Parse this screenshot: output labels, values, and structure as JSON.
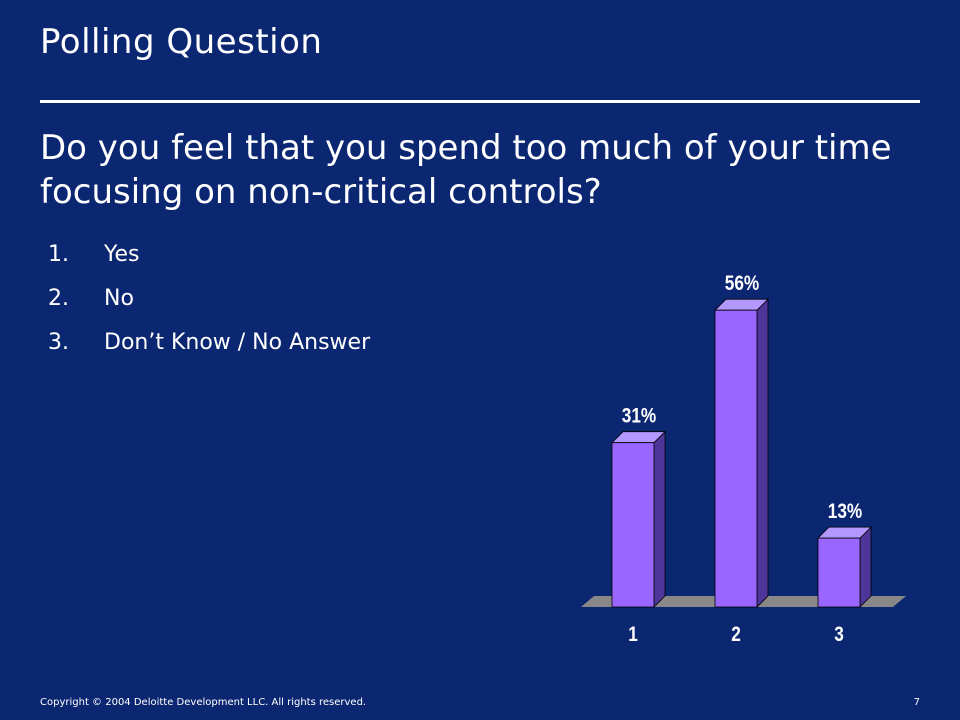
{
  "slide": {
    "title": "Polling Question",
    "question": "Do you feel that you spend too much of your time focusing on non-critical controls?",
    "answers": [
      {
        "number": "1.",
        "text": "Yes"
      },
      {
        "number": "2.",
        "text": "No"
      },
      {
        "number": "3.",
        "text": "Don’t Know / No Answer"
      }
    ]
  },
  "chart_data": {
    "type": "bar",
    "categories": [
      "1",
      "2",
      "3"
    ],
    "values": [
      31,
      56,
      13
    ],
    "data_labels": [
      "31%",
      "56%",
      "13%"
    ],
    "title": "",
    "xlabel": "",
    "ylabel": "",
    "ylim": [
      0,
      56
    ],
    "grid": false,
    "legend": "none",
    "colors": {
      "bar_front": "#9966ff",
      "bar_side": "#4d3599",
      "bar_top": "#b399ff",
      "floor": "#888888"
    }
  },
  "footer": {
    "copyright": "Copyright © 2004 Deloitte Development LLC. All rights reserved.",
    "page_number": "7"
  }
}
